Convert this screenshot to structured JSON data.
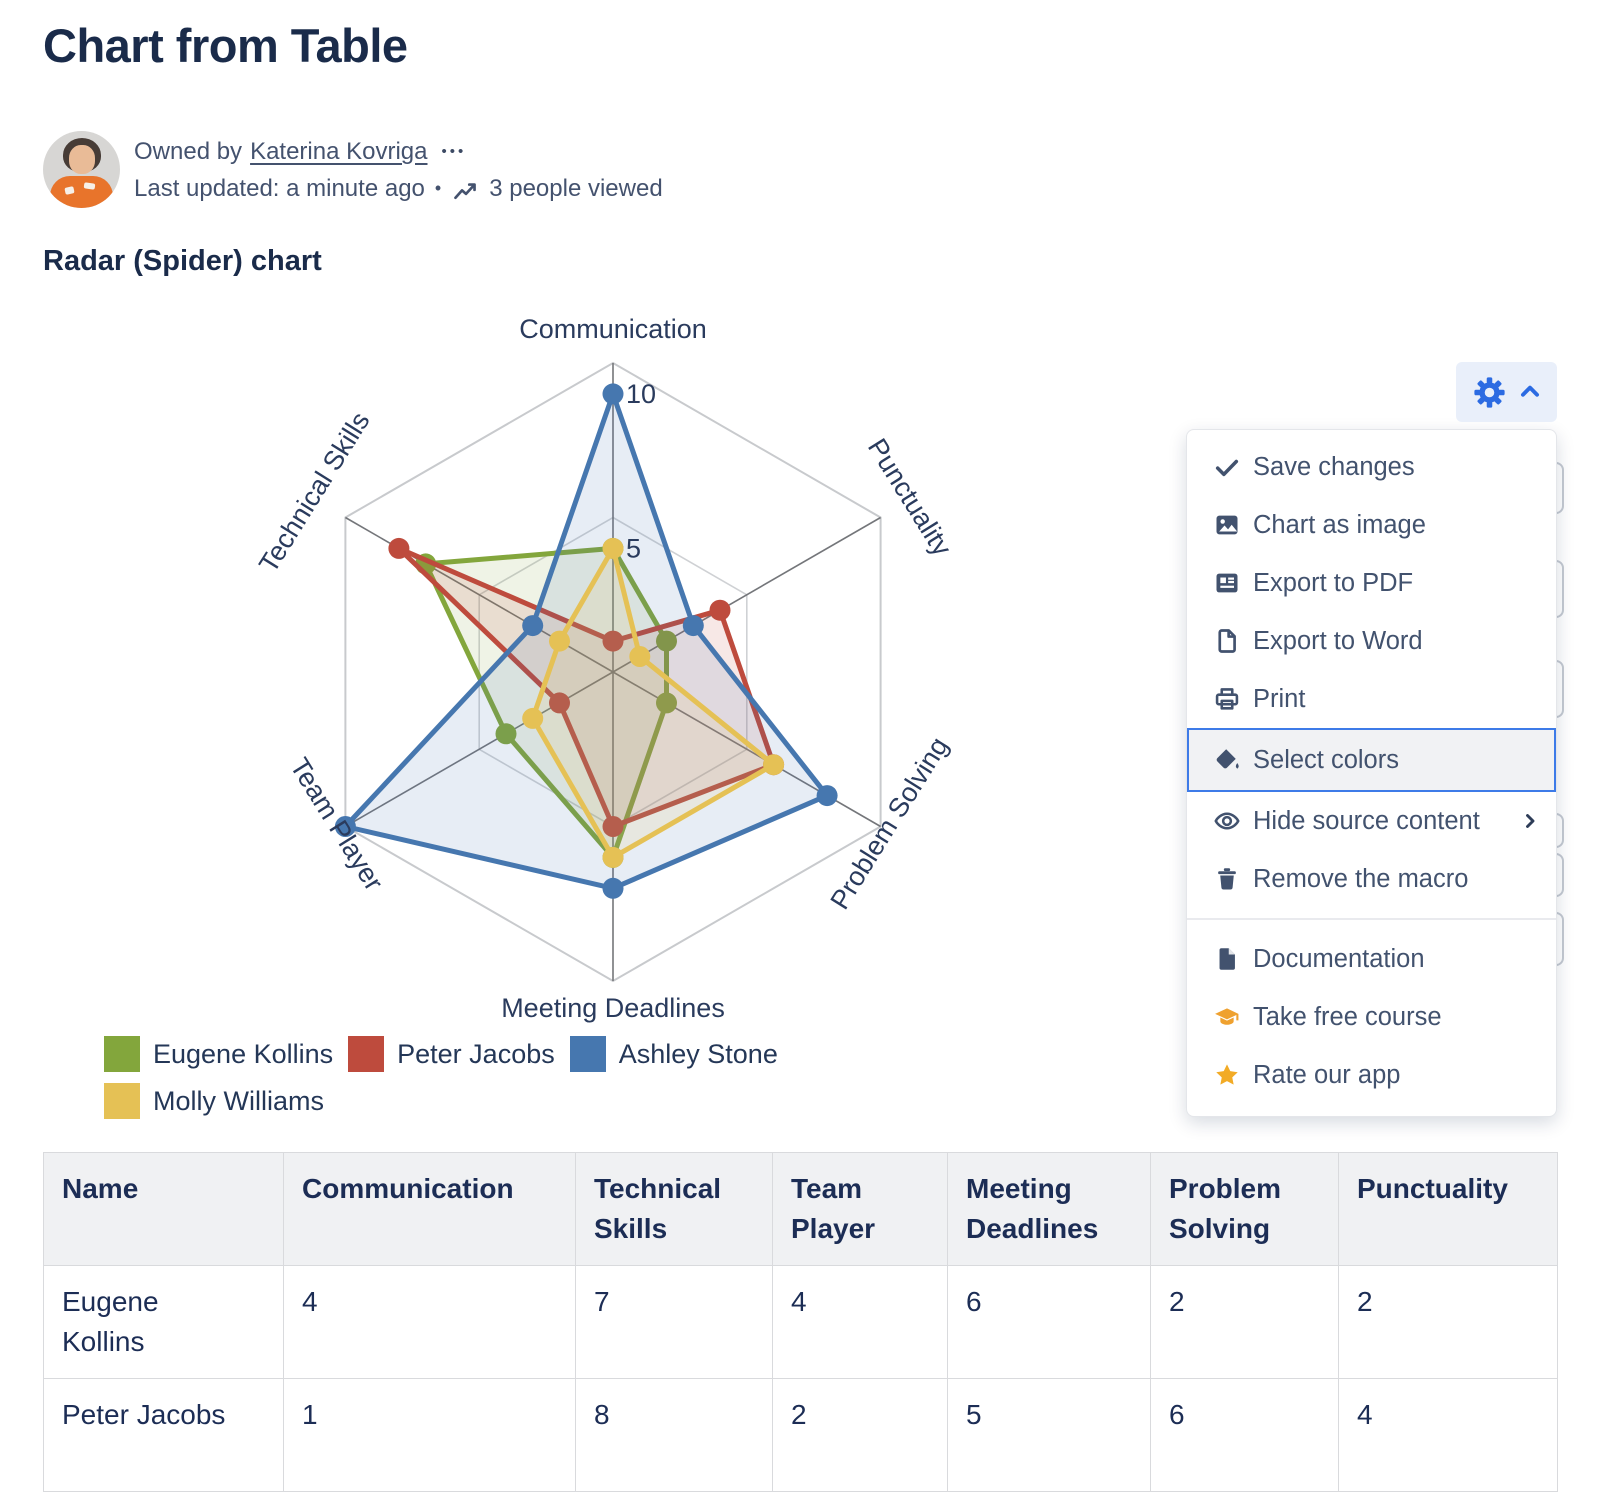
{
  "page": {
    "title": "Chart from Table"
  },
  "byline": {
    "owned_by_prefix": "Owned by",
    "owner": "Katerina Kovriga",
    "more_dots": "•••",
    "last_updated": "Last updated: a minute ago",
    "separator": "•",
    "views": "3 people viewed"
  },
  "section_heading": "Radar (Spider) chart",
  "chart_data": {
    "type": "radar",
    "axes": [
      "Communication",
      "Punctuality",
      "Problem Solving",
      "Meeting Deadlines",
      "Team Player",
      "Technical Skills"
    ],
    "scale": {
      "min": 0,
      "max": 10,
      "gridlines": [
        5,
        10
      ],
      "tick_labels": [
        "5",
        "10"
      ]
    },
    "series": [
      {
        "name": "Eugene Kollins",
        "color": "#83A63C",
        "values": [
          4,
          2,
          2,
          6,
          4,
          7
        ]
      },
      {
        "name": "Peter Jacobs",
        "color": "#BE4B3D",
        "values": [
          1,
          4,
          6,
          5,
          2,
          8
        ]
      },
      {
        "name": "Ashley Stone",
        "color": "#4677AF",
        "values": [
          9,
          3,
          8,
          7,
          10,
          3
        ]
      },
      {
        "name": "Molly Williams",
        "color": "#E5C155",
        "values": [
          4,
          1,
          6,
          6,
          3,
          2
        ]
      }
    ],
    "legend_position": "bottom-left"
  },
  "settings_menu": {
    "gear_color": "#2C6BE2",
    "accent_border": "#3D7BE8",
    "items": [
      {
        "label": "Save changes",
        "icon": "check"
      },
      {
        "label": "Chart as image",
        "icon": "image"
      },
      {
        "label": "Export to PDF",
        "icon": "export-pdf"
      },
      {
        "label": "Export to Word",
        "icon": "export-word"
      },
      {
        "label": "Print",
        "icon": "print"
      },
      {
        "label": "Select colors",
        "icon": "select-colors",
        "selected": true
      },
      {
        "label": "Hide source content",
        "icon": "eye",
        "submenu": true
      },
      {
        "label": "Remove the macro",
        "icon": "trash"
      },
      {
        "label": "Documentation",
        "icon": "document",
        "divider_before": true
      },
      {
        "label": "Take free course",
        "icon": "graduation-cap",
        "icon_color": "#EFA12F"
      },
      {
        "label": "Rate our app",
        "icon": "star",
        "icon_color": "#F2AB26"
      }
    ]
  },
  "table": {
    "headers": [
      "Name",
      "Communication",
      "Technical Skills",
      "Team Player",
      "Meeting Deadlines",
      "Problem Solving",
      "Punctuality"
    ],
    "rows": [
      [
        "Eugene Kollins",
        "4",
        "7",
        "4",
        "6",
        "2",
        "2"
      ],
      [
        "Peter Jacobs",
        "1",
        "8",
        "2",
        "5",
        "6",
        "4"
      ]
    ]
  }
}
